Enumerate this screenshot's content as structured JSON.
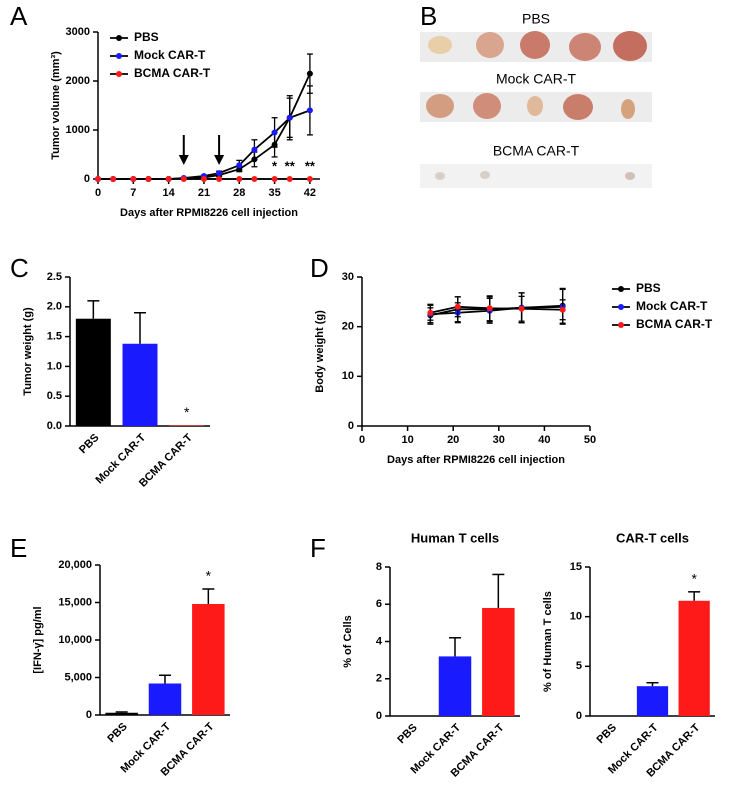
{
  "chart_data": [
    {
      "type": "line",
      "panel": "A",
      "x_label": "Days after RPMI8226 cell injection",
      "y_label": "Tumor volume (mm³)",
      "x": [
        0,
        3,
        7,
        10,
        14,
        17,
        21,
        24,
        28,
        31,
        35,
        38,
        42
      ],
      "xlim": [
        0,
        44
      ],
      "xticks": [
        0,
        7,
        14,
        21,
        28,
        35,
        42
      ],
      "ylim": [
        0,
        3000
      ],
      "yticks": [
        0,
        1000,
        2000,
        3000
      ],
      "legend": "top-left",
      "arrows": [
        17,
        24
      ],
      "annotations": [
        null,
        null,
        null,
        null,
        null,
        null,
        null,
        null,
        null,
        null,
        "*",
        "**",
        "**"
      ],
      "series": [
        {
          "name": "PBS",
          "color": "#000000",
          "values": [
            0,
            0,
            0,
            0,
            0,
            10,
            30,
            80,
            200,
            400,
            700,
            1250,
            2150
          ],
          "errors": [
            0,
            0,
            0,
            0,
            0,
            10,
            20,
            30,
            50,
            150,
            250,
            400,
            400
          ]
        },
        {
          "name": "Mock CAR-T",
          "color": "#1a1aff",
          "values": [
            0,
            0,
            0,
            0,
            0,
            20,
            60,
            120,
            280,
            600,
            950,
            1250,
            1400
          ],
          "errors": [
            0,
            0,
            0,
            0,
            0,
            10,
            20,
            40,
            100,
            200,
            300,
            450,
            500
          ]
        },
        {
          "name": "BCMA CAR-T",
          "color": "#ff1a1a",
          "values": [
            0,
            0,
            0,
            0,
            0,
            0,
            0,
            0,
            0,
            0,
            0,
            0,
            0
          ],
          "errors": [
            0,
            0,
            0,
            0,
            0,
            0,
            0,
            0,
            0,
            0,
            0,
            0,
            0
          ]
        }
      ]
    },
    {
      "type": "bar",
      "panel": "C",
      "y_label": "Tumor weight (g)",
      "categories": [
        "PBS",
        "Mock CAR-T",
        "BCMA CAR-T"
      ],
      "values": [
        1.8,
        1.38,
        0.01
      ],
      "errors": [
        0.3,
        0.52,
        0
      ],
      "colors": [
        "#000000",
        "#1a1aff",
        "#ff1a1a"
      ],
      "annotations": [
        null,
        null,
        "*"
      ],
      "ylim": [
        0,
        2.5
      ],
      "yticks": [
        {
          "value": 0,
          "label": "0.0"
        },
        {
          "value": 0.5,
          "label": "0.5"
        },
        {
          "value": 1,
          "label": "1.0"
        },
        {
          "value": 1.5,
          "label": "1.5"
        },
        {
          "value": 2,
          "label": "2.0"
        },
        {
          "value": 2.5,
          "label": "2.5"
        }
      ]
    },
    {
      "type": "line",
      "panel": "D",
      "x_label": "Days after RPMI8226 cell injection",
      "y_label": "Body weight (g)",
      "x": [
        15,
        21,
        28,
        35,
        44
      ],
      "xlim": [
        0,
        50
      ],
      "xticks": [
        0,
        10,
        20,
        30,
        40,
        50
      ],
      "ylim": [
        0,
        30
      ],
      "yticks": [
        0,
        10,
        20,
        30
      ],
      "legend": "outside-right",
      "series": [
        {
          "name": "PBS",
          "color": "#000000",
          "values": [
            22.3,
            23.5,
            23.5,
            23.8,
            24.2
          ],
          "errors": [
            1.5,
            2.5,
            2.5,
            3,
            3.5
          ]
        },
        {
          "name": "Mock CAR-T",
          "color": "#1a1aff",
          "values": [
            22.5,
            22.8,
            23.2,
            23.8,
            24
          ],
          "errors": [
            2,
            2,
            2.5,
            3,
            3.5
          ]
        },
        {
          "name": "BCMA CAR-T",
          "color": "#ff1a1a",
          "values": [
            22.8,
            24,
            23.7,
            23.6,
            23.4
          ],
          "errors": [
            1.5,
            2,
            2.5,
            2.5,
            2
          ]
        }
      ]
    },
    {
      "type": "bar",
      "panel": "E",
      "y_label": "[IFN-γ] pg/ml",
      "categories": [
        "PBS",
        "Mock CAR-T",
        "BCMA CAR-T"
      ],
      "values": [
        300,
        4200,
        14800
      ],
      "errors": [
        100,
        1100,
        2000
      ],
      "colors": [
        "#000000",
        "#1a1aff",
        "#ff1a1a"
      ],
      "annotations": [
        null,
        null,
        "*"
      ],
      "ylim": [
        0,
        20000
      ],
      "yticks": [
        0,
        {
          "value": 5000,
          "label": "5,000"
        },
        {
          "value": 10000,
          "label": "10,000"
        },
        {
          "value": 15000,
          "label": "15,000"
        },
        {
          "value": 20000,
          "label": "20,000"
        }
      ]
    },
    {
      "type": "bar",
      "panel": "F",
      "title": "Human T cells",
      "y_label": "% of Cells",
      "categories": [
        "PBS",
        "Mock CAR-T",
        "BCMA CAR-T"
      ],
      "values": [
        0,
        3.2,
        5.8
      ],
      "errors": [
        0,
        1.0,
        1.8
      ],
      "colors": [
        "#000000",
        "#1a1aff",
        "#ff1a1a"
      ],
      "ylim": [
        0,
        8
      ],
      "yticks": [
        0,
        2,
        4,
        6,
        8
      ]
    },
    {
      "type": "bar",
      "title": "CAR-T cells",
      "y_label": "% of Human T cells",
      "categories": [
        "PBS",
        "Mock CAR-T",
        "BCMA CAR-T"
      ],
      "values": [
        0,
        3.0,
        11.6
      ],
      "errors": [
        0,
        0.35,
        0.9
      ],
      "colors": [
        "#000000",
        "#1a1aff",
        "#ff1a1a"
      ],
      "annotations": [
        null,
        null,
        "*"
      ],
      "ylim": [
        0,
        15
      ],
      "yticks": [
        0,
        5,
        10,
        15
      ]
    }
  ],
  "photo": {
    "panel": "B",
    "rows": [
      "PBS",
      "Mock CAR-T",
      "BCMA CAR-T"
    ]
  }
}
